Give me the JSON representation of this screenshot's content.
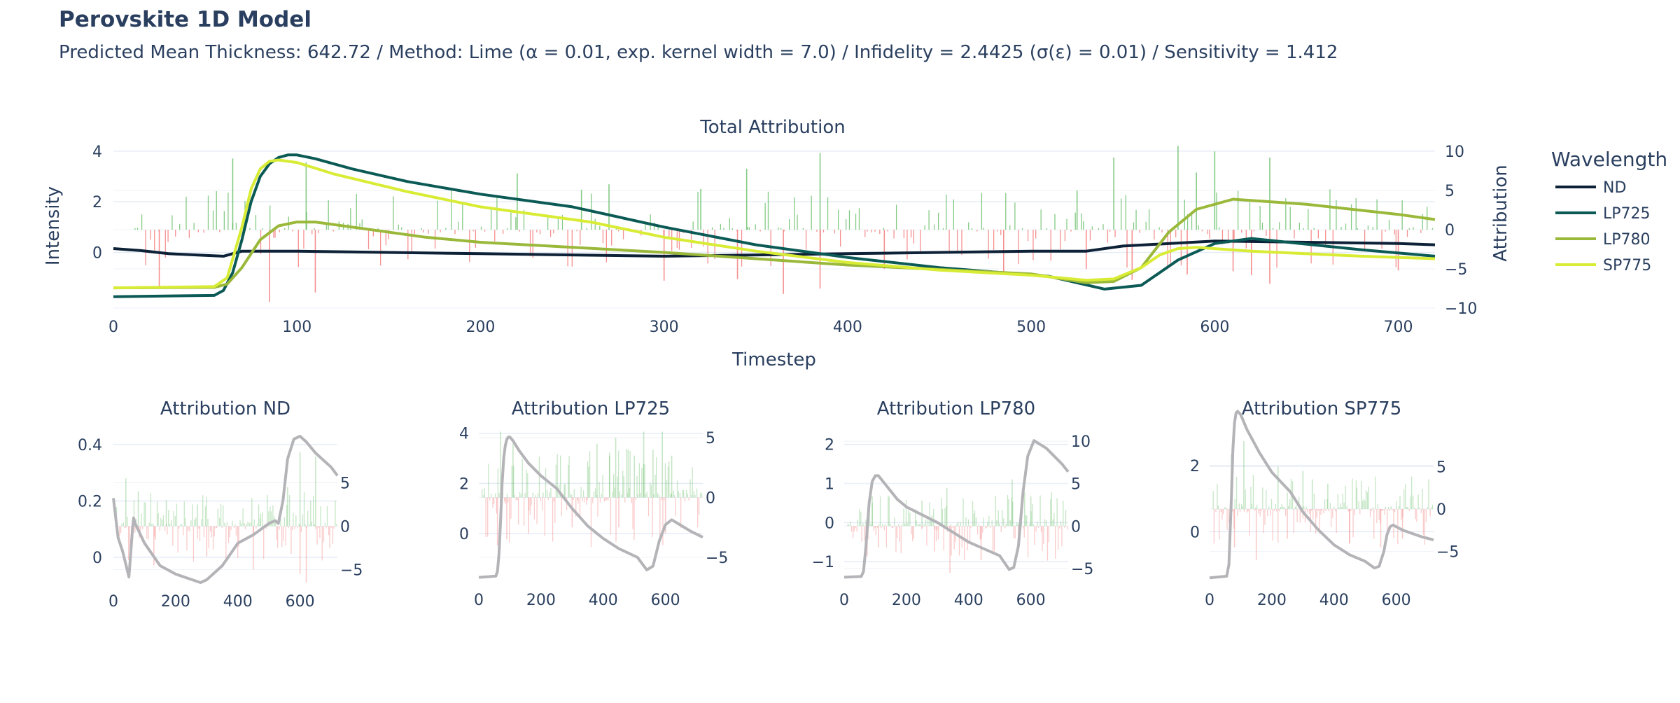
{
  "header": {
    "title": "Perovskite 1D Model",
    "subtitle": "Predicted Mean Thickness: 642.72 / Method: Lime (α = 0.01, exp. kernel width = 7.0) / Infidelity = 2.4425 (σ(ε) = 0.01) / Sensitivity = 1.412"
  },
  "colors": {
    "ND": "#0d2137",
    "LP725": "#0b5a55",
    "LP780": "#9ab83a",
    "SP775": "#d8ec35",
    "positive_bar": "#5cb85c",
    "negative_bar": "#f26b6b",
    "panel_line": "#b4b4b8",
    "grid": "#e5ecf6"
  },
  "legend": {
    "title": "Wavelength",
    "items": [
      "ND",
      "LP725",
      "LP780",
      "SP775"
    ]
  },
  "chart_data": [
    {
      "id": "main",
      "type": "line",
      "title": "Total Attribution",
      "xlabel": "Timestep",
      "ylabel": "Intensity",
      "y2label": "Attribution",
      "xlim": [
        0,
        720
      ],
      "ylim": [
        -2.2,
        4.3
      ],
      "y2lim": [
        -10,
        11
      ],
      "xticks": [
        0,
        100,
        200,
        300,
        400,
        500,
        600,
        700
      ],
      "yticks": [
        0,
        2,
        4
      ],
      "y2ticks": [
        -10,
        -5,
        0,
        5,
        10
      ],
      "legend_position": "right",
      "series": [
        {
          "name": "ND",
          "x": [
            0,
            15,
            30,
            50,
            60,
            65,
            70,
            100,
            200,
            300,
            400,
            500,
            530,
            550,
            600,
            650,
            700,
            720
          ],
          "y": [
            0.15,
            0.07,
            -0.05,
            -0.12,
            -0.15,
            -0.05,
            0.05,
            0.05,
            -0.05,
            -0.15,
            -0.05,
            0.05,
            0.05,
            0.25,
            0.45,
            0.4,
            0.35,
            0.3
          ]
        },
        {
          "name": "LP725",
          "x": [
            0,
            55,
            60,
            65,
            70,
            75,
            80,
            85,
            90,
            95,
            100,
            110,
            130,
            160,
            200,
            250,
            300,
            350,
            400,
            450,
            510,
            540,
            560,
            580,
            600,
            620,
            640,
            680,
            720
          ],
          "y": [
            -1.75,
            -1.7,
            -1.5,
            -0.8,
            0.5,
            2.0,
            3.0,
            3.5,
            3.75,
            3.85,
            3.85,
            3.7,
            3.3,
            2.8,
            2.3,
            1.8,
            1.0,
            0.3,
            -0.2,
            -0.6,
            -0.95,
            -1.45,
            -1.3,
            -0.3,
            0.35,
            0.55,
            0.4,
            0.1,
            -0.15
          ]
        },
        {
          "name": "LP780",
          "x": [
            0,
            55,
            62,
            70,
            80,
            90,
            100,
            110,
            130,
            170,
            200,
            300,
            400,
            500,
            530,
            545,
            560,
            575,
            590,
            610,
            650,
            700,
            720
          ],
          "y": [
            -1.4,
            -1.38,
            -1.25,
            -0.6,
            0.5,
            1.05,
            1.2,
            1.2,
            1.0,
            0.6,
            0.4,
            0.0,
            -0.5,
            -0.85,
            -1.2,
            -1.15,
            -0.6,
            0.8,
            1.7,
            2.1,
            1.9,
            1.5,
            1.3
          ]
        },
        {
          "name": "SP775",
          "x": [
            0,
            55,
            62,
            70,
            75,
            80,
            85,
            90,
            100,
            120,
            160,
            200,
            260,
            300,
            350,
            400,
            450,
            500,
            530,
            545,
            560,
            570,
            580,
            590,
            620,
            680,
            720
          ],
          "y": [
            -1.4,
            -1.35,
            -1.0,
            1.0,
            2.5,
            3.3,
            3.6,
            3.65,
            3.55,
            3.1,
            2.4,
            1.8,
            1.2,
            0.6,
            0.05,
            -0.4,
            -0.7,
            -0.9,
            -1.1,
            -1.05,
            -0.6,
            -0.1,
            0.15,
            0.2,
            0.05,
            -0.15,
            -0.25
          ]
        }
      ],
      "attribution_bars": {
        "spike_x": [
          65,
          105,
          220,
          255,
          270,
          320,
          345,
          385,
          525,
          545,
          580,
          590,
          600,
          630
        ],
        "spike_value": [
          9.1,
          8.6,
          7.2,
          5.1,
          5.8,
          5.2,
          7.8,
          9.8,
          5.0,
          9.2,
          10.7,
          7.3,
          10.0,
          9.2
        ],
        "neg_spike_x": [
          25,
          85,
          110,
          300,
          340,
          365,
          385,
          420,
          485,
          530,
          555,
          585,
          610,
          620,
          630,
          700
        ],
        "neg_spike_value": [
          -7.2,
          -9.2,
          -8.0,
          -6.5,
          -6.3,
          -8.2,
          -7.5,
          -5.0,
          -5.6,
          -5.0,
          -6.4,
          -5.7,
          -5.3,
          -5.8,
          -6.9,
          -5.2
        ]
      }
    },
    {
      "id": "nd",
      "type": "line",
      "title": "Attribution ND",
      "xlim": [
        0,
        720
      ],
      "ylim": [
        -0.09,
        0.45
      ],
      "y2lim": [
        -6.5,
        11
      ],
      "xticks": [
        0,
        200,
        400,
        600
      ],
      "yticks": [
        0,
        0.2,
        0.4
      ],
      "y2ticks": [
        -5,
        0,
        5
      ],
      "line_x": [
        0,
        15,
        30,
        50,
        60,
        65,
        70,
        100,
        150,
        200,
        280,
        300,
        350,
        400,
        450,
        500,
        520,
        530,
        545,
        560,
        580,
        600,
        620,
        650,
        680,
        700,
        720
      ],
      "line_y": [
        0.21,
        0.07,
        0.02,
        -0.07,
        0.08,
        0.14,
        0.12,
        0.05,
        -0.03,
        -0.06,
        -0.09,
        -0.08,
        -0.03,
        0.05,
        0.08,
        0.12,
        0.13,
        0.12,
        0.2,
        0.35,
        0.42,
        0.43,
        0.41,
        0.37,
        0.34,
        0.32,
        0.29
      ],
      "attribution_bars": {
        "spike_x": [
          40,
          80,
          170,
          270,
          560,
          600,
          650
        ],
        "spike_value": [
          5.5,
          4.0,
          3.0,
          2.5,
          4.5,
          8.5,
          8.0
        ],
        "neg_spike_x": [
          130,
          300,
          450,
          600,
          620
        ],
        "neg_spike_value": [
          -4.5,
          -3.5,
          -5.0,
          -5.5,
          -6.5
        ]
      }
    },
    {
      "id": "lp725",
      "type": "line",
      "title": "Attribution LP725",
      "xlim": [
        0,
        720
      ],
      "ylim": [
        -1.9,
        4.3
      ],
      "y2lim": [
        -7,
        6
      ],
      "xticks": [
        0,
        200,
        400,
        600
      ],
      "yticks": [
        0,
        2,
        4
      ],
      "y2ticks": [
        -5,
        0,
        5
      ],
      "line_x": [
        0,
        55,
        60,
        65,
        70,
        75,
        80,
        85,
        90,
        95,
        100,
        110,
        130,
        160,
        200,
        250,
        300,
        350,
        400,
        450,
        510,
        540,
        560,
        580,
        600,
        620,
        640,
        680,
        720
      ],
      "line_y": [
        -1.75,
        -1.7,
        -1.5,
        -0.8,
        0.5,
        2.0,
        3.0,
        3.5,
        3.75,
        3.85,
        3.85,
        3.7,
        3.3,
        2.8,
        2.3,
        1.8,
        1.0,
        0.3,
        -0.2,
        -0.6,
        -0.95,
        -1.45,
        -1.3,
        -0.3,
        0.35,
        0.55,
        0.4,
        0.1,
        -0.15
      ],
      "attribution_bars": {
        "spike_x": [
          70,
          110,
          350,
          380,
          420,
          440,
          480,
          500,
          530,
          560,
          590,
          620
        ],
        "spike_value": [
          5.5,
          4.5,
          3.0,
          4.5,
          3.5,
          5.0,
          4.0,
          3.5,
          5.5,
          4.0,
          5.5,
          3.5
        ],
        "neg_spike_x": [
          60,
          90,
          160,
          300,
          450,
          600
        ],
        "neg_spike_value": [
          -4.0,
          -3.5,
          -3.0,
          -2.5,
          -2.5,
          -3.0
        ]
      }
    },
    {
      "id": "lp780",
      "type": "line",
      "title": "Attribution LP780",
      "xlim": [
        0,
        720
      ],
      "ylim": [
        -1.5,
        2.3
      ],
      "y2lim": [
        -6.5,
        11
      ],
      "xticks": [
        0,
        200,
        400,
        600
      ],
      "yticks": [
        -1,
        0,
        1,
        2
      ],
      "y2ticks": [
        -5,
        0,
        5,
        10
      ],
      "line_x": [
        0,
        55,
        62,
        70,
        80,
        90,
        100,
        110,
        130,
        170,
        200,
        300,
        400,
        500,
        530,
        545,
        560,
        575,
        590,
        610,
        650,
        700,
        720
      ],
      "line_y": [
        -1.4,
        -1.38,
        -1.25,
        -0.6,
        0.5,
        1.05,
        1.2,
        1.2,
        1.0,
        0.6,
        0.4,
        0.0,
        -0.5,
        -0.85,
        -1.2,
        -1.15,
        -0.6,
        0.8,
        1.7,
        2.1,
        1.9,
        1.5,
        1.3
      ],
      "attribution_bars": {
        "spike_x": [
          90,
          250,
          330,
          540,
          580,
          600
        ],
        "spike_value": [
          3.5,
          3.0,
          4.5,
          5.5,
          4.0,
          3.5
        ],
        "neg_spike_x": [
          70,
          110,
          290,
          340,
          440,
          560
        ],
        "neg_spike_value": [
          -3.5,
          -2.5,
          -3.0,
          -5.5,
          -4.0,
          -3.0
        ]
      }
    },
    {
      "id": "sp775",
      "type": "line",
      "title": "Attribution SP775",
      "xlim": [
        0,
        720
      ],
      "ylim": [
        -1.5,
        3.0
      ],
      "y2lim": [
        -8.5,
        9
      ],
      "xticks": [
        0,
        200,
        400,
        600
      ],
      "yticks": [
        0,
        2
      ],
      "y2ticks": [
        -5,
        0,
        5
      ],
      "line_x": [
        0,
        55,
        62,
        70,
        75,
        80,
        85,
        90,
        100,
        120,
        160,
        200,
        260,
        300,
        350,
        400,
        450,
        500,
        530,
        545,
        560,
        570,
        580,
        590,
        620,
        680,
        720
      ],
      "line_y": [
        -1.4,
        -1.35,
        -1.0,
        1.0,
        2.5,
        3.3,
        3.6,
        3.65,
        3.55,
        3.1,
        2.4,
        1.8,
        1.2,
        0.6,
        0.05,
        -0.4,
        -0.7,
        -0.9,
        -1.1,
        -1.05,
        -0.6,
        -0.1,
        0.15,
        0.2,
        0.05,
        -0.15,
        -0.25
      ],
      "attribution_bars": {
        "spike_x": [
          70,
          110,
          220,
          300,
          330,
          380
        ],
        "spike_value": [
          6.5,
          8.0,
          5.0,
          4.5,
          3.5,
          3.0
        ],
        "neg_spike_x": [
          80,
          150,
          250,
          450,
          550,
          620
        ],
        "neg_spike_value": [
          -4.5,
          -6.0,
          -3.5,
          -4.0,
          -4.5,
          -3.5
        ]
      }
    }
  ]
}
